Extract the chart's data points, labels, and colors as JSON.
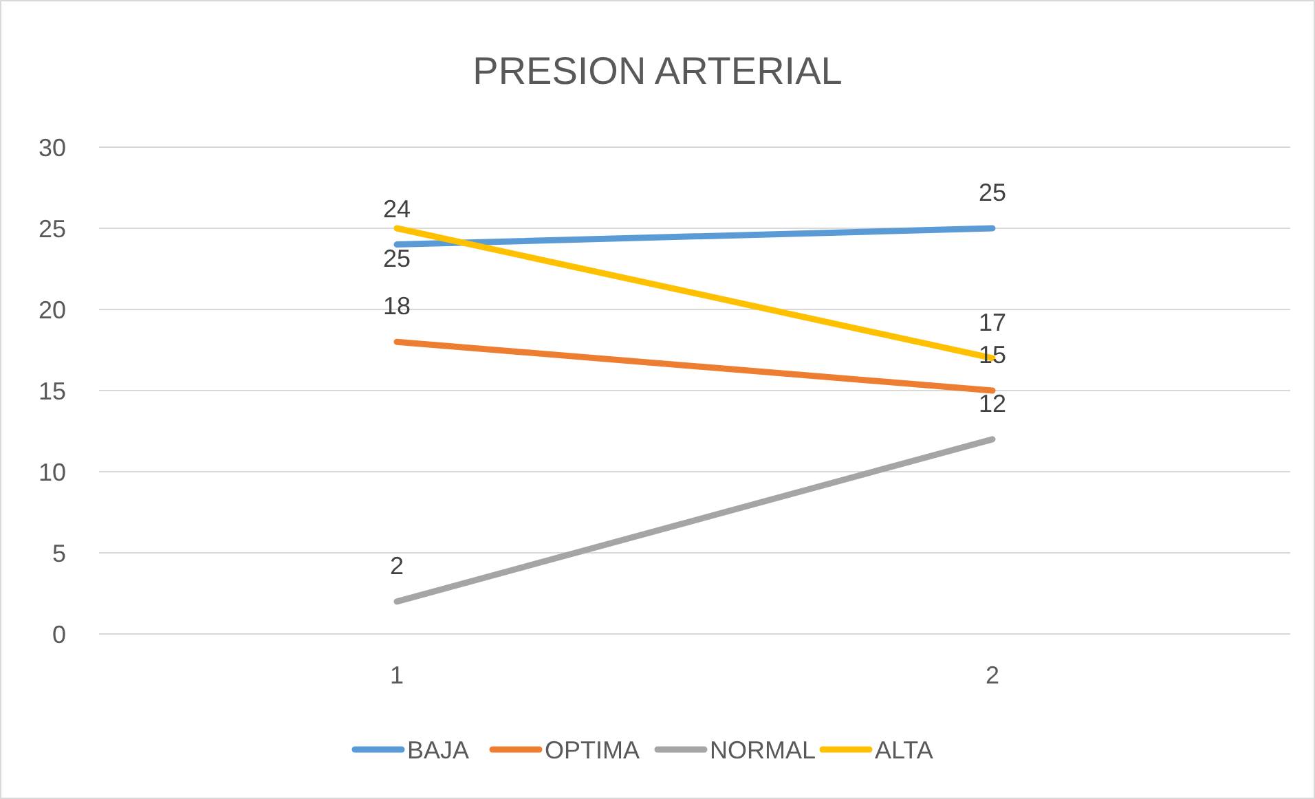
{
  "chart_data": {
    "type": "line",
    "title": "PRESION ARTERIAL",
    "categories": [
      "1",
      "2"
    ],
    "series": [
      {
        "name": "BAJA",
        "color": "#5b9bd5",
        "values": [
          24,
          25
        ]
      },
      {
        "name": "OPTIMA",
        "color": "#ed7d31",
        "values": [
          18,
          15
        ]
      },
      {
        "name": "NORMAL",
        "color": "#a5a5a5",
        "values": [
          2,
          12
        ]
      },
      {
        "name": "ALTA",
        "color": "#ffc000",
        "values": [
          25,
          17
        ]
      }
    ],
    "ylim": [
      0,
      30
    ],
    "yticks": [
      0,
      5,
      10,
      15,
      20,
      25,
      30
    ],
    "grid": "y",
    "legend": "bottom",
    "data_labels": true,
    "marker": "none",
    "line_style": "solid"
  }
}
